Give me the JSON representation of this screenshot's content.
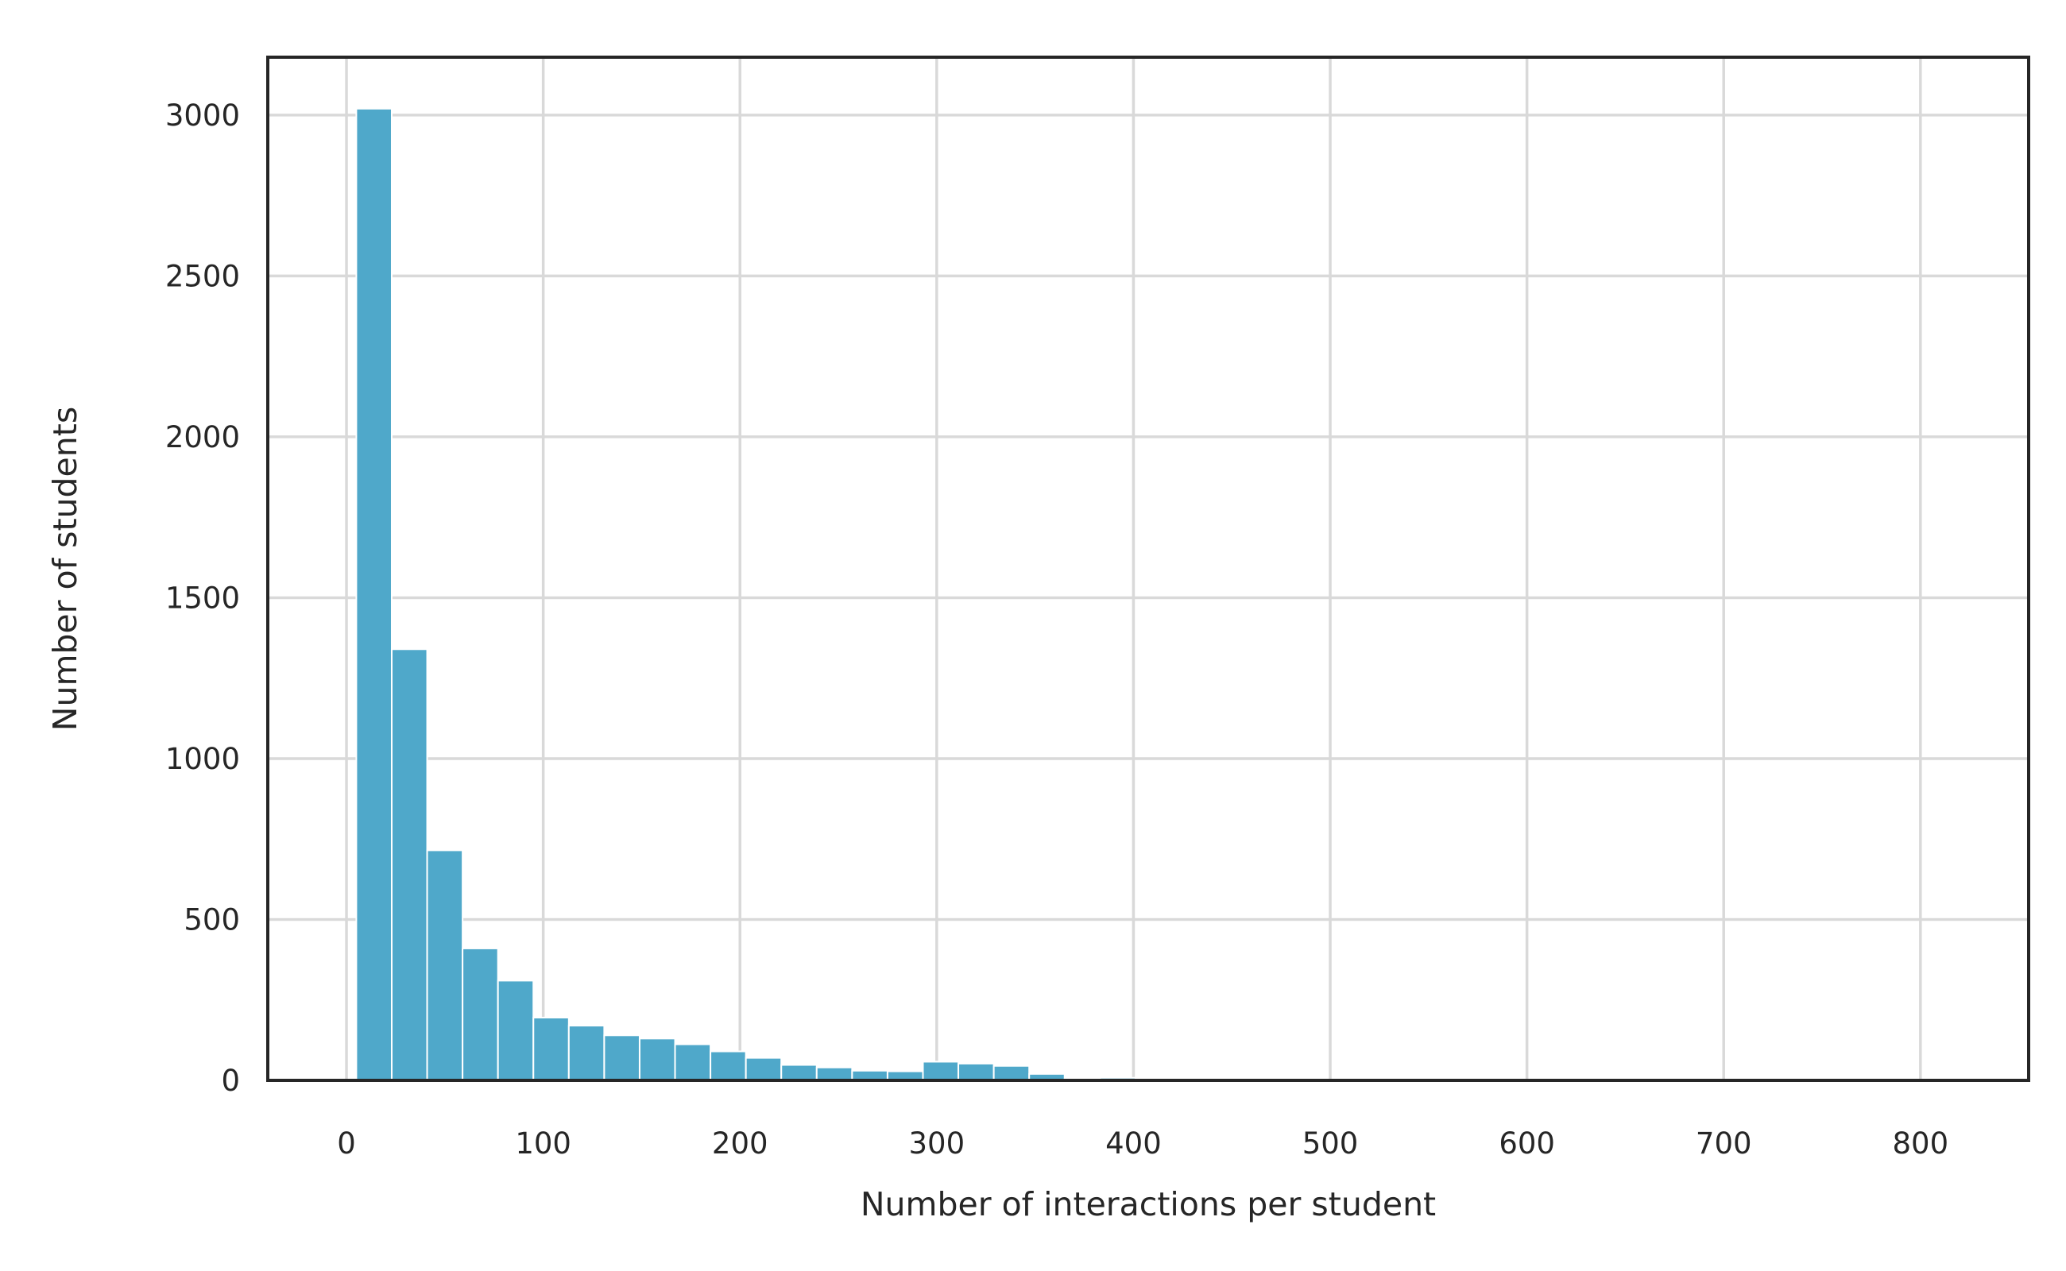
{
  "page": {
    "background_color": "#ffffff"
  },
  "chart_data": {
    "type": "bar",
    "subtype": "histogram",
    "title": "",
    "xlabel": "Number of interactions per student",
    "ylabel": "Number of students",
    "bar_color": "#4fa8ca",
    "bar_edge_color": "#ffffff",
    "grid_color": "#d9d9d9",
    "axis_color": "#262626",
    "text_color": "#262626",
    "grid": true,
    "legend": false,
    "xlim": [
      -40,
      855
    ],
    "ylim": [
      0,
      3180
    ],
    "x_ticks": [
      0,
      100,
      200,
      300,
      400,
      500,
      600,
      700,
      800
    ],
    "y_ticks": [
      0,
      500,
      1000,
      1500,
      2000,
      2500,
      3000
    ],
    "bins_start": 5,
    "bin_width": 18,
    "values": [
      3020,
      1340,
      715,
      410,
      310,
      195,
      170,
      140,
      130,
      112,
      90,
      70,
      48,
      40,
      30,
      28,
      58,
      52,
      45,
      20,
      4,
      8
    ]
  }
}
